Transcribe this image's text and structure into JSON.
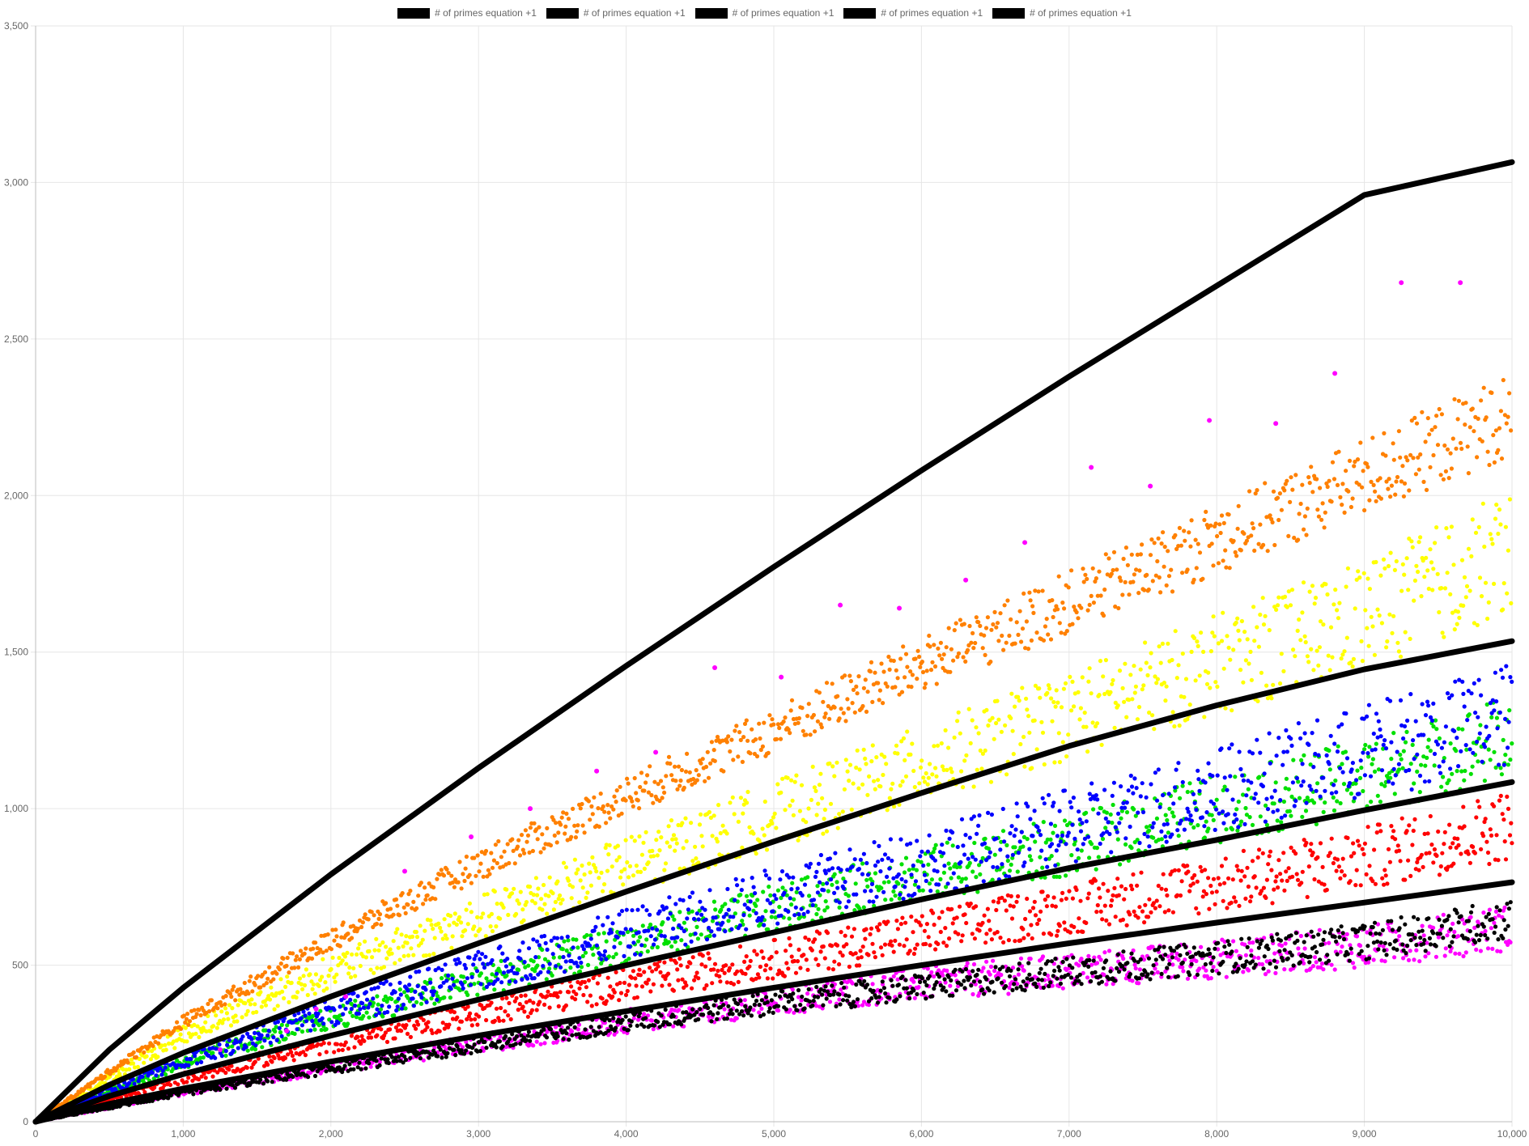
{
  "chart_data": {
    "type": "scatter",
    "title": "",
    "xlabel": "",
    "ylabel": "",
    "xlim": [
      0,
      10000
    ],
    "ylim": [
      0,
      3500
    ],
    "x_ticks": [
      0,
      1000,
      2000,
      3000,
      4000,
      5000,
      6000,
      7000,
      8000,
      9000,
      10000
    ],
    "y_ticks": [
      0,
      500,
      1000,
      1500,
      2000,
      2500,
      3000,
      3500
    ],
    "x_tick_labels": [
      "0",
      "1,000",
      "2,000",
      "3,000",
      "4,000",
      "5,000",
      "6,000",
      "7,000",
      "8,000",
      "9,000",
      "10,000"
    ],
    "y_tick_labels": [
      "0",
      "500",
      "1,000",
      "1,500",
      "2,000",
      "2,500",
      "3,000",
      "3,500"
    ],
    "grid": true,
    "legend_position": "top-center",
    "legend": [
      "# of primes equation +1",
      "# of primes equation +1",
      "# of primes equation +1",
      "# of primes equation +1",
      "# of primes equation +1"
    ],
    "lines": [
      {
        "name": "# of primes equation +1",
        "color": "#000000",
        "points": [
          [
            0,
            0
          ],
          [
            500,
            230
          ],
          [
            1000,
            428
          ],
          [
            2000,
            790
          ],
          [
            3000,
            1130
          ],
          [
            4000,
            1456
          ],
          [
            5000,
            1772
          ],
          [
            6000,
            2080
          ],
          [
            7000,
            2380
          ],
          [
            8000,
            2670
          ],
          [
            9000,
            2960
          ],
          [
            10000,
            3065
          ]
        ]
      },
      {
        "name": "# of primes equation +1",
        "color": "#000000",
        "points": [
          [
            0,
            0
          ],
          [
            500,
            118
          ],
          [
            1000,
            220
          ],
          [
            2000,
            400
          ],
          [
            3000,
            570
          ],
          [
            4000,
            735
          ],
          [
            5000,
            895
          ],
          [
            6000,
            1050
          ],
          [
            7000,
            1200
          ],
          [
            8000,
            1330
          ],
          [
            9000,
            1445
          ],
          [
            10000,
            1535
          ]
        ]
      },
      {
        "name": "# of primes equation +1",
        "color": "#000000",
        "points": [
          [
            0,
            0
          ],
          [
            500,
            82
          ],
          [
            1000,
            152
          ],
          [
            2000,
            275
          ],
          [
            3000,
            390
          ],
          [
            4000,
            500
          ],
          [
            5000,
            605
          ],
          [
            6000,
            710
          ],
          [
            7000,
            810
          ],
          [
            8000,
            900
          ],
          [
            9000,
            995
          ],
          [
            10000,
            1085
          ]
        ]
      },
      {
        "name": "# of primes equation +1",
        "color": "#000000",
        "points": [
          [
            0,
            0
          ],
          [
            500,
            57
          ],
          [
            1000,
            106
          ],
          [
            2000,
            192
          ],
          [
            3000,
            275
          ],
          [
            4000,
            353
          ],
          [
            5000,
            428
          ],
          [
            6000,
            500
          ],
          [
            7000,
            570
          ],
          [
            8000,
            636
          ],
          [
            9000,
            700
          ],
          [
            10000,
            765
          ]
        ]
      }
    ],
    "series": [
      {
        "color": "#ff00ff",
        "trend": [
          [
            0,
            0
          ],
          [
            1000,
            95
          ],
          [
            2000,
            175
          ],
          [
            3000,
            250
          ],
          [
            4000,
            320
          ],
          [
            5000,
            385
          ],
          [
            6000,
            440
          ],
          [
            7000,
            480
          ],
          [
            8000,
            520
          ],
          [
            9000,
            560
          ],
          [
            10000,
            620
          ]
        ],
        "spread": 0.12
      },
      {
        "color": "#000000",
        "trend": [
          [
            0,
            0
          ],
          [
            1000,
            92
          ],
          [
            2000,
            170
          ],
          [
            3000,
            245
          ],
          [
            4000,
            318
          ],
          [
            5000,
            380
          ],
          [
            6000,
            430
          ],
          [
            7000,
            480
          ],
          [
            8000,
            525
          ],
          [
            9000,
            575
          ],
          [
            10000,
            650
          ]
        ],
        "spread": 0.1
      },
      {
        "color": "#ff0000",
        "trend": [
          [
            0,
            0
          ],
          [
            1000,
            140
          ],
          [
            2000,
            250
          ],
          [
            3000,
            350
          ],
          [
            4000,
            440
          ],
          [
            5000,
            520
          ],
          [
            6000,
            600
          ],
          [
            7000,
            680
          ],
          [
            8000,
            760
          ],
          [
            9000,
            840
          ],
          [
            10000,
            950
          ]
        ],
        "spread": 0.12
      },
      {
        "color": "#00e000",
        "trend": [
          [
            0,
            0
          ],
          [
            1000,
            190
          ],
          [
            2000,
            330
          ],
          [
            3000,
            450
          ],
          [
            4000,
            570
          ],
          [
            5000,
            680
          ],
          [
            6000,
            790
          ],
          [
            7000,
            880
          ],
          [
            8000,
            1000
          ],
          [
            9000,
            1100
          ],
          [
            10000,
            1230
          ]
        ],
        "spread": 0.11
      },
      {
        "color": "#0000ff",
        "trend": [
          [
            0,
            0
          ],
          [
            1000,
            200
          ],
          [
            2000,
            350
          ],
          [
            3000,
            480
          ],
          [
            4000,
            600
          ],
          [
            5000,
            720
          ],
          [
            6000,
            830
          ],
          [
            7000,
            940
          ],
          [
            8000,
            1060
          ],
          [
            9000,
            1180
          ],
          [
            10000,
            1300
          ]
        ],
        "spread": 0.13
      },
      {
        "color": "#ffff00",
        "trend": [
          [
            0,
            0
          ],
          [
            1000,
            280
          ],
          [
            2000,
            480
          ],
          [
            3000,
            650
          ],
          [
            4000,
            820
          ],
          [
            5000,
            980
          ],
          [
            6000,
            1140
          ],
          [
            7000,
            1300
          ],
          [
            8000,
            1460
          ],
          [
            9000,
            1620
          ],
          [
            10000,
            1820
          ]
        ],
        "spread": 0.11
      },
      {
        "color": "#ff8000",
        "trend": [
          [
            0,
            0
          ],
          [
            1000,
            320
          ],
          [
            2000,
            580
          ],
          [
            3000,
            820
          ],
          [
            4000,
            1040
          ],
          [
            5000,
            1250
          ],
          [
            6000,
            1460
          ],
          [
            7000,
            1660
          ],
          [
            8000,
            1860
          ],
          [
            9000,
            2060
          ],
          [
            10000,
            2260
          ]
        ],
        "spread": 0.06
      }
    ],
    "outliers": {
      "color": "#ff00ff",
      "points": [
        [
          1250,
          230
        ],
        [
          1700,
          290
        ],
        [
          1900,
          360
        ],
        [
          2100,
          400
        ],
        [
          2500,
          800
        ],
        [
          2950,
          910
        ],
        [
          3350,
          1000
        ],
        [
          3800,
          1120
        ],
        [
          4200,
          1180
        ],
        [
          4600,
          1450
        ],
        [
          5050,
          1420
        ],
        [
          5450,
          1650
        ],
        [
          5850,
          1640
        ],
        [
          6300,
          1730
        ],
        [
          6700,
          1850
        ],
        [
          7150,
          2090
        ],
        [
          7550,
          2030
        ],
        [
          7950,
          2240
        ],
        [
          8400,
          2230
        ],
        [
          8800,
          2390
        ],
        [
          9250,
          2680
        ],
        [
          9650,
          2680
        ]
      ]
    }
  }
}
